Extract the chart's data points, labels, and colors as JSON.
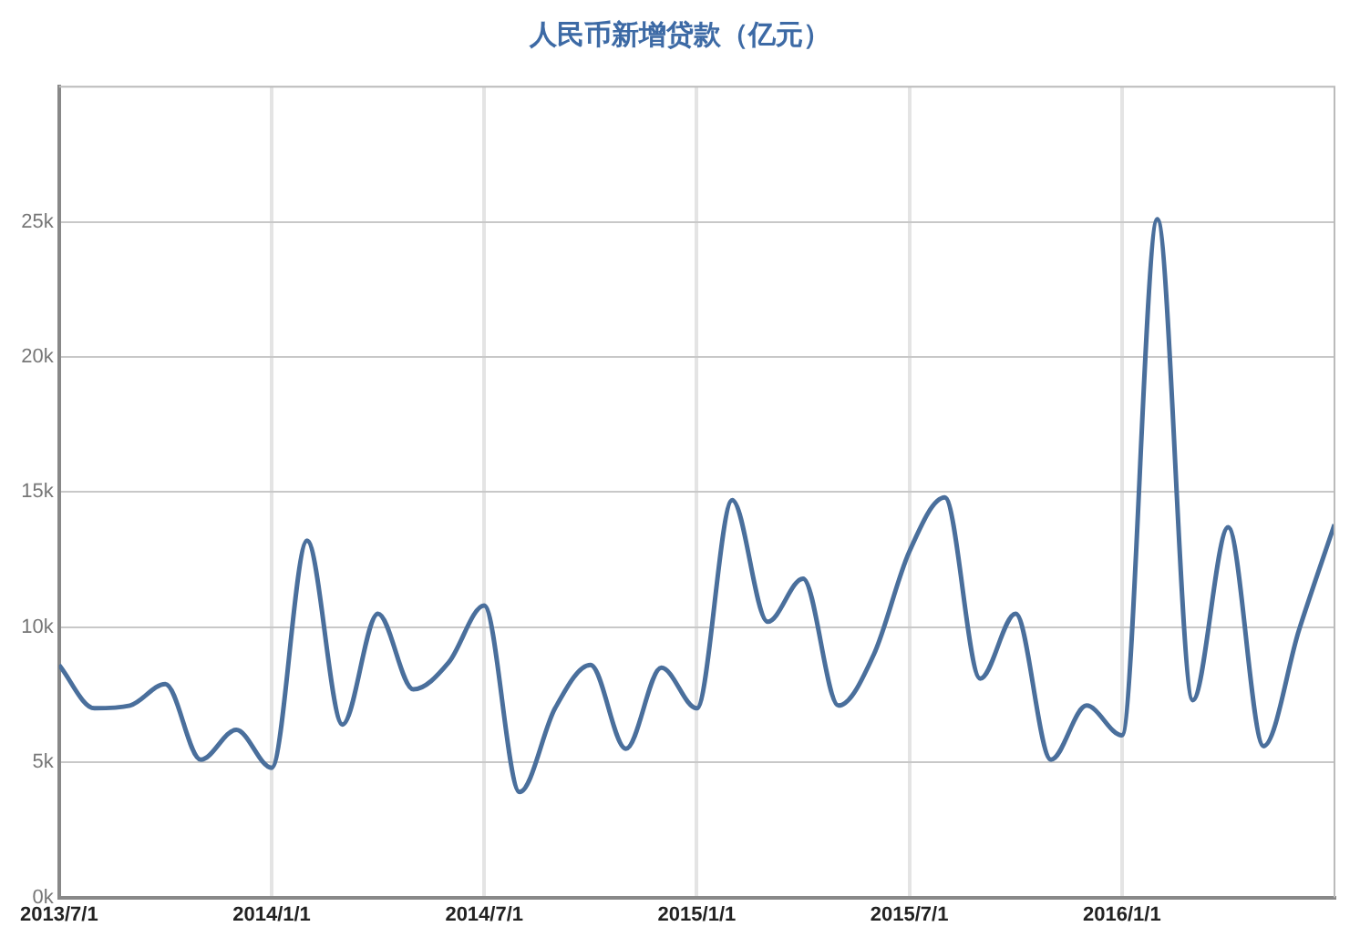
{
  "chart_data": {
    "type": "line",
    "title": "人民币新增贷款（亿元）",
    "x": [
      "2013-07",
      "2013-08",
      "2013-09",
      "2013-10",
      "2013-11",
      "2013-12",
      "2014-01",
      "2014-02",
      "2014-03",
      "2014-04",
      "2014-05",
      "2014-06",
      "2014-07",
      "2014-08",
      "2014-09",
      "2014-10",
      "2014-11",
      "2014-12",
      "2015-01",
      "2015-02",
      "2015-03",
      "2015-04",
      "2015-05",
      "2015-06",
      "2015-07",
      "2015-08",
      "2015-09",
      "2015-10",
      "2015-11",
      "2015-12",
      "2016-01",
      "2016-02",
      "2016-03",
      "2016-04",
      "2016-05",
      "2016-06",
      "2016-07"
    ],
    "series": [
      {
        "color": "#4a6f9c",
        "values": [
          8600,
          7000,
          7100,
          7900,
          5100,
          6200,
          4800,
          13200,
          6400,
          10500,
          7700,
          8700,
          10800,
          3900,
          7000,
          8600,
          5500,
          8500,
          7000,
          14700,
          10200,
          11800,
          7100,
          9000,
          12800,
          14800,
          8100,
          10500,
          5100,
          7100,
          6000,
          25100,
          7300,
          13700,
          5600,
          9900,
          13800
        ]
      }
    ],
    "xlim": [
      "2013-07",
      "2016-07"
    ],
    "xticks": [
      {
        "value": "2013-07",
        "label": "2013/7/1"
      },
      {
        "value": "2014-01",
        "label": "2014/1/1"
      },
      {
        "value": "2014-07",
        "label": "2014/7/1"
      },
      {
        "value": "2015-01",
        "label": "2015/1/1"
      },
      {
        "value": "2015-07",
        "label": "2015/7/1"
      },
      {
        "value": "2016-01",
        "label": "2016/1/1"
      }
    ],
    "ylim": [
      0,
      30000
    ],
    "yticks": [
      {
        "value": 0,
        "label": "0k"
      },
      {
        "value": 5000,
        "label": "5k"
      },
      {
        "value": 10000,
        "label": "10k"
      },
      {
        "value": 15000,
        "label": "15k"
      },
      {
        "value": 20000,
        "label": "20k"
      },
      {
        "value": 25000,
        "label": "25k"
      }
    ],
    "grid": true,
    "legend": false,
    "marker": "none",
    "line_style": "solid"
  }
}
